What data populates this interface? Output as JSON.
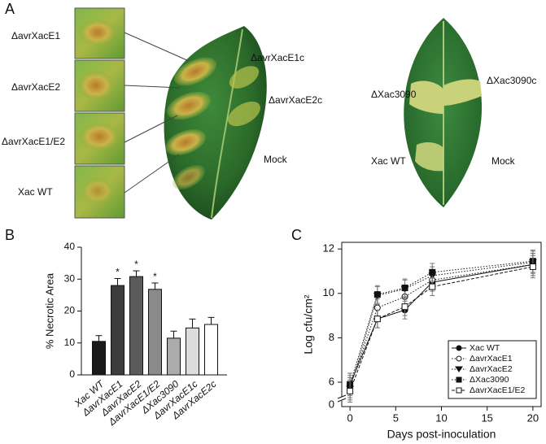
{
  "panel_a": {
    "label": "A",
    "thumbnail_labels": [
      "ΔavrXacE1",
      "ΔavrXacE2",
      "ΔavrXacE1/E2",
      "Xac WT"
    ],
    "leaf1_labels": [
      "ΔavrXacE1c",
      "ΔavrXacE2c",
      "Mock"
    ],
    "leaf2_labels": [
      "ΔXac3090",
      "ΔXac3090c",
      "Xac WT",
      "Mock"
    ]
  },
  "chart_data": [
    {
      "type": "bar",
      "panel": "B",
      "y_label": "% Necrotic Area",
      "categories": [
        "Xac WT",
        "ΔavrXacE1",
        "ΔavrXacE2",
        "ΔavrXacE1/E2",
        "ΔXac3090",
        "ΔavrXacE1c",
        "ΔavrXacE2c"
      ],
      "values": [
        10.5,
        28,
        30.8,
        26.8,
        11.5,
        14.7,
        15.8
      ],
      "errors": [
        1.8,
        2.2,
        1.8,
        2,
        2.2,
        2.8,
        2.2
      ],
      "significance": [
        null,
        "*",
        "*",
        "*",
        null,
        null,
        null
      ],
      "colors": [
        "#1a1a1a",
        "#3c3c3c",
        "#5a5a5a",
        "#8a8a8a",
        "#ababab",
        "#dcdcdc",
        "#ffffff"
      ],
      "ylim": [
        0,
        40
      ],
      "yticks": [
        0,
        10,
        20,
        30,
        40
      ]
    },
    {
      "type": "line",
      "panel": "C",
      "x_label": "Days post-inoculation",
      "y_label": "Log cfu/cm²",
      "x": [
        0,
        3,
        6,
        9,
        20
      ],
      "series": [
        {
          "name": "Xac WT",
          "marker": "circle",
          "filled": true,
          "dash": "solid",
          "color": "#111111",
          "values": [
            5.9,
            8.85,
            9.25,
            10.5,
            11.3
          ],
          "errors": [
            0.5,
            0.4,
            0.4,
            0.4,
            0.5
          ]
        },
        {
          "name": "ΔavrXacE1",
          "marker": "circle",
          "filled": false,
          "dash": "dotted",
          "color": "#111111",
          "values": [
            5.8,
            9.35,
            9.85,
            10.6,
            11.3
          ],
          "errors": [
            0.5,
            0.4,
            0.4,
            0.4,
            0.5
          ]
        },
        {
          "name": "ΔavrXacE2",
          "marker": "triangle",
          "filled": true,
          "dash": "dotted",
          "color": "#111111",
          "values": [
            5.7,
            9.9,
            10.2,
            10.8,
            11.4
          ],
          "errors": [
            0.5,
            0.4,
            0.4,
            0.4,
            0.5
          ]
        },
        {
          "name": "ΔXac3090",
          "marker": "square",
          "filled": true,
          "dash": "dotted",
          "color": "#111111",
          "values": [
            5.9,
            9.95,
            10.25,
            10.95,
            11.45
          ],
          "errors": [
            0.5,
            0.4,
            0.4,
            0.4,
            0.5
          ]
        },
        {
          "name": "ΔavrXacE1/E2",
          "marker": "square",
          "filled": false,
          "dash": "dashed",
          "color": "#111111",
          "values": [
            5.6,
            8.85,
            9.4,
            10.3,
            11.2
          ],
          "errors": [
            0.5,
            0.4,
            0.4,
            0.4,
            0.5
          ]
        }
      ],
      "xlim": [
        -0.9,
        20.9
      ],
      "xticks": [
        0,
        5,
        10,
        15,
        20
      ],
      "ylim": [
        4.9,
        12.3
      ],
      "yticks": [
        6,
        8,
        10,
        12
      ],
      "y_break_tick": 0,
      "legend": "lower right"
    }
  ]
}
